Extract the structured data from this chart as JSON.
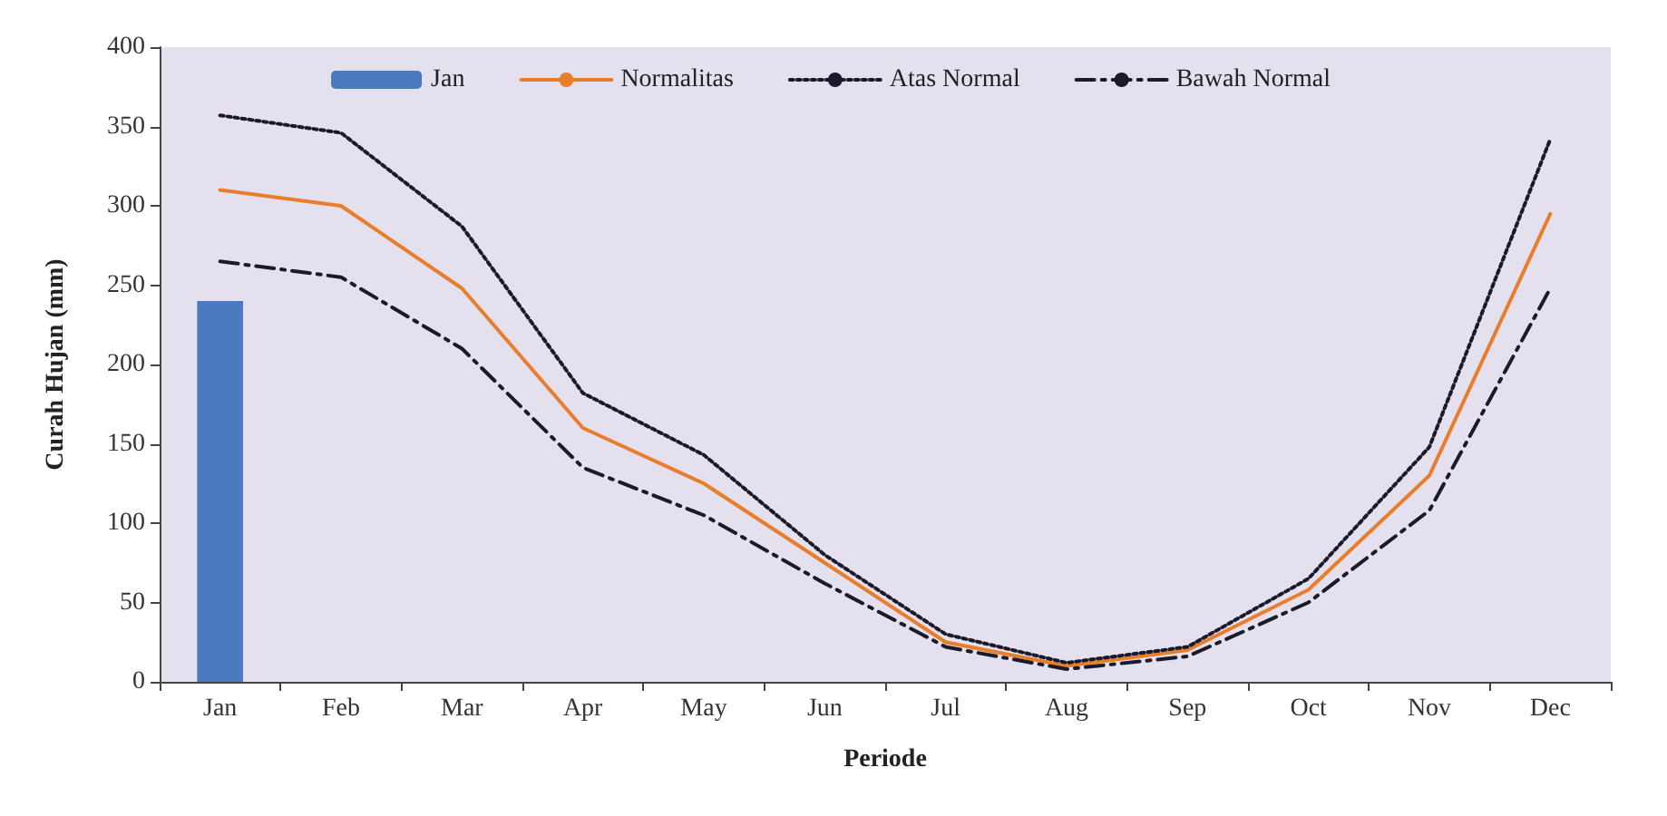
{
  "chart_data": {
    "type": "line",
    "xlabel": "Periode",
    "ylabel": "Curah Hujan (mm)",
    "categories": [
      "Jan",
      "Feb",
      "Mar",
      "Apr",
      "May",
      "Jun",
      "Jul",
      "Aug",
      "Sep",
      "Oct",
      "Nov",
      "Dec"
    ],
    "series": [
      {
        "name": "Jan",
        "type": "bar",
        "color": "#4a7bbf",
        "values": [
          240,
          null,
          null,
          null,
          null,
          null,
          null,
          null,
          null,
          null,
          null,
          null
        ]
      },
      {
        "name": "Normalitas",
        "color": "#e87d2c",
        "line_style": "solid",
        "values": [
          310,
          300,
          248,
          160,
          125,
          75,
          25,
          10,
          20,
          58,
          130,
          295
        ]
      },
      {
        "name": "Atas Normal",
        "color": "#1a1a2a",
        "line_style": "dotted",
        "values": [
          357,
          346,
          287,
          182,
          143,
          80,
          30,
          12,
          22,
          65,
          148,
          342
        ]
      },
      {
        "name": "Bawah Normal",
        "color": "#1a1a2a",
        "line_style": "dashed",
        "values": [
          265,
          255,
          210,
          135,
          105,
          62,
          22,
          8,
          16,
          50,
          108,
          248
        ]
      }
    ],
    "ylim": [
      0,
      400
    ],
    "yticks": [
      0,
      50,
      100,
      150,
      200,
      250,
      300,
      350,
      400
    ],
    "grid": false,
    "legend": "top",
    "marker": "none"
  }
}
